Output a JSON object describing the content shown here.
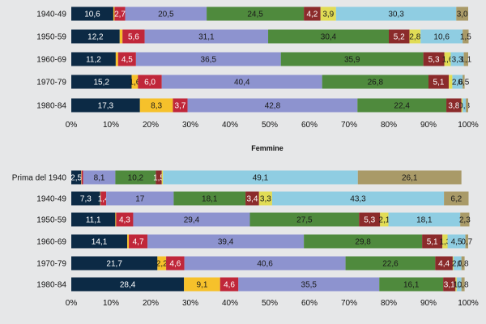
{
  "colors": {
    "background": "#e6e7e8",
    "segments": [
      "#0c2a45",
      "#f6c12b",
      "#c0273a",
      "#8d93cf",
      "#4f8a3d",
      "#8b2b2b",
      "#e1dc55",
      "#8fcde2",
      "#a99a68"
    ],
    "label_dark_segments": [
      1,
      3,
      4,
      6,
      7,
      8
    ]
  },
  "chart_data": [
    {
      "type": "bar",
      "orientation": "horizontal",
      "stacked": true,
      "title": "",
      "xlim": [
        0,
        100
      ],
      "x_ticks": [
        "0%",
        "10%",
        "20%",
        "30%",
        "40%",
        "50%",
        "60%",
        "70%",
        "80%",
        "90%",
        "100%"
      ],
      "categories": [
        "1940-49",
        "1950-59",
        "1960-69",
        "1970-79",
        "1980-84"
      ],
      "series": [
        {
          "values": [
            10.6,
            12.2,
            11.2,
            15.2,
            17.3
          ]
        },
        {
          "values": [
            0.3,
            0.7,
            0.6,
            1.6,
            8.3
          ]
        },
        {
          "values": [
            2.7,
            5.6,
            4.5,
            6.0,
            3.7
          ]
        },
        {
          "values": [
            20.5,
            31.1,
            36.5,
            40.4,
            42.8
          ]
        },
        {
          "values": [
            24.5,
            30.4,
            35.9,
            26.8,
            22.4
          ]
        },
        {
          "values": [
            4.2,
            5.2,
            5.3,
            5.1,
            3.8
          ]
        },
        {
          "values": [
            3.9,
            2.8,
            1.6,
            0.9,
            0.3
          ]
        },
        {
          "values": [
            30.3,
            10.6,
            3.3,
            2.6,
            0.8
          ]
        },
        {
          "values": [
            3.0,
            1.5,
            1.1,
            0.5,
            0.6
          ]
        }
      ],
      "data_labels": [
        [
          "10,6",
          "",
          "2,7",
          "20,5",
          "24,5",
          "4,2",
          "3,9",
          "30,3",
          "3,0"
        ],
        [
          "12,2",
          "",
          "5,6",
          "31,1",
          "30,4",
          "5,2",
          "2,8",
          "10,6",
          "1,5"
        ],
        [
          "11,2",
          "",
          "4,5",
          "36,5",
          "35,9",
          "5,3",
          "1,6",
          "3,3",
          "1,1"
        ],
        [
          "15,2",
          "1,6",
          "6,0",
          "40,4",
          "26,8",
          "5,1",
          "",
          "2,6",
          "0,5"
        ],
        [
          "17,3",
          "8,3",
          "3,7",
          "42,8",
          "22,4",
          "3,8",
          "",
          "0,8",
          ""
        ]
      ]
    },
    {
      "type": "bar",
      "orientation": "horizontal",
      "stacked": true,
      "title": "Femmine",
      "xlim": [
        0,
        100
      ],
      "x_ticks": [
        "0%",
        "10%",
        "20%",
        "30%",
        "40%",
        "50%",
        "60%",
        "70%",
        "80%",
        "90%",
        "100%"
      ],
      "categories": [
        "Prima del 1940",
        "1940-49",
        "1950-59",
        "1960-69",
        "1970-79",
        "1980-84"
      ],
      "series": [
        {
          "values": [
            2.5,
            7.3,
            11.1,
            14.1,
            21.7,
            28.4
          ]
        },
        {
          "values": [
            0.1,
            0.1,
            0.2,
            0.4,
            2.2,
            9.1
          ]
        },
        {
          "values": [
            0.4,
            1.4,
            4.3,
            4.7,
            4.6,
            4.6
          ]
        },
        {
          "values": [
            8.1,
            17.0,
            29.4,
            39.4,
            40.6,
            35.5
          ]
        },
        {
          "values": [
            10.2,
            18.1,
            27.5,
            29.8,
            22.6,
            16.1
          ]
        },
        {
          "values": [
            1.5,
            3.4,
            5.3,
            5.1,
            4.4,
            3.1
          ]
        },
        {
          "values": [
            0.3,
            3.3,
            2.1,
            1.3,
            0.2,
            0.3
          ]
        },
        {
          "values": [
            49.1,
            43.3,
            18.1,
            4.5,
            2.0,
            1.2
          ]
        },
        {
          "values": [
            26.1,
            6.2,
            2.3,
            0.7,
            0.8,
            0.8
          ]
        }
      ],
      "data_labels": [
        [
          "2,5",
          "",
          "",
          "8,1",
          "10,2",
          "1,5",
          "",
          "49,1",
          "26,1"
        ],
        [
          "7,3",
          "",
          "1,4",
          "17",
          "18,1",
          "3,4",
          "3,3",
          "43,3",
          "6,2"
        ],
        [
          "11,1",
          "",
          "4,3",
          "29,4",
          "27,5",
          "5,3",
          "2,1",
          "18,1",
          "2,3"
        ],
        [
          "14,1",
          "",
          "4,7",
          "39,4",
          "29,8",
          "5,1",
          "1,3",
          "4,5",
          "0,7"
        ],
        [
          "21,7",
          "2,2",
          "4,6",
          "40,6",
          "22,6",
          "4,4",
          "",
          "2,0",
          "0,8"
        ],
        [
          "28,4",
          "9,1",
          "4,6",
          "35,5",
          "16,1",
          "3,1",
          "",
          "1,2",
          "0,8"
        ]
      ]
    }
  ]
}
